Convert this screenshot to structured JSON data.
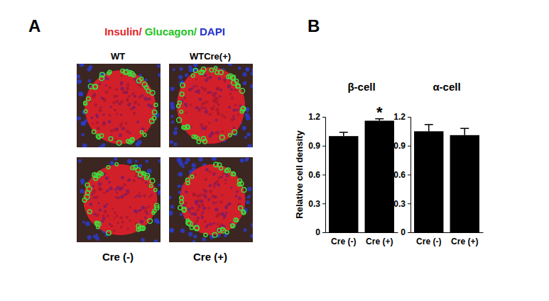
{
  "panel_a": {
    "label": "A",
    "stain_labels": [
      {
        "text": "Insulin/",
        "color": "#e3242b"
      },
      {
        "text": "Glucagon/",
        "color": "#22c322"
      },
      {
        "text": "DAPI",
        "color": "#2233cc"
      }
    ],
    "column_labels": [
      "WT",
      "WTCre(+)"
    ],
    "bottom_labels": [
      "Cre (-)",
      "Cre (+)"
    ]
  },
  "panel_b": {
    "label": "B"
  },
  "chart_data": [
    {
      "type": "bar",
      "title": "β-cell",
      "y_label": "Relative cell density",
      "categories": [
        "Cre (-)",
        "Cre (+)"
      ],
      "values": [
        1.0,
        1.16
      ],
      "errors": [
        0.04,
        0.02
      ],
      "color": "#000000",
      "ylim": [
        0,
        1.2
      ],
      "yticks": [
        0,
        0.3,
        0.6,
        0.9,
        1.2
      ],
      "annotations": [
        {
          "text": "*",
          "x": "Cre (+)"
        }
      ]
    },
    {
      "type": "bar",
      "title": "α-cell",
      "categories": [
        "Cre (-)",
        "Cre (+)"
      ],
      "values": [
        1.05,
        1.01
      ],
      "errors": [
        0.07,
        0.07
      ],
      "color": "#000000",
      "ylim": [
        0,
        1.2
      ],
      "yticks": [
        0,
        0.3,
        0.6,
        0.9,
        1.2
      ]
    }
  ]
}
